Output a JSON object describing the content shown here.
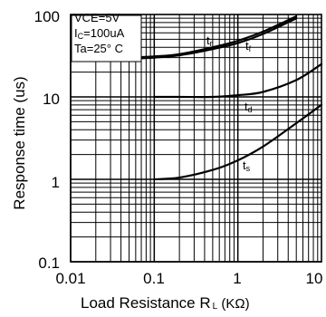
{
  "chart_data": {
    "type": "line",
    "x_scale": "log",
    "y_scale": "log",
    "xlim": [
      0.01,
      10
    ],
    "ylim": [
      0.1,
      100
    ],
    "grid": true,
    "x_ticks": [
      "0.01",
      "0.1",
      "1",
      "10"
    ],
    "y_ticks": [
      "100",
      "10",
      "1",
      "0.1"
    ],
    "xlabel": {
      "prefix": "Load Resistance R",
      "sub": "L",
      "unit": " (KΩ)"
    },
    "ylabel": "Response time (us)",
    "conditions": [
      {
        "text": "VCE=5V"
      },
      {
        "text": "I",
        "sub": "C",
        "after": "=100uA"
      },
      {
        "text": "Ta=25° C"
      }
    ],
    "series": [
      {
        "label": "t",
        "sub": "r",
        "x": [
          0.05,
          0.1,
          0.2,
          0.5,
          1,
          2,
          5
        ],
        "y": [
          29,
          30,
          32,
          38,
          45,
          58,
          90
        ]
      },
      {
        "label": "t",
        "sub": "f",
        "x": [
          0.05,
          0.1,
          0.2,
          0.5,
          1,
          2,
          5
        ],
        "y": [
          30,
          31,
          33,
          40,
          48,
          62,
          95
        ]
      },
      {
        "label": "t",
        "sub": "d",
        "x": [
          0.1,
          0.2,
          0.5,
          1,
          2,
          5,
          10
        ],
        "y": [
          10,
          10,
          10,
          10.5,
          11.5,
          16,
          25
        ]
      },
      {
        "label": "t",
        "sub": "s",
        "x": [
          0.1,
          0.2,
          0.5,
          1,
          2,
          5,
          10
        ],
        "y": [
          1,
          1.05,
          1.3,
          1.7,
          2.5,
          4.8,
          8
        ]
      }
    ]
  }
}
